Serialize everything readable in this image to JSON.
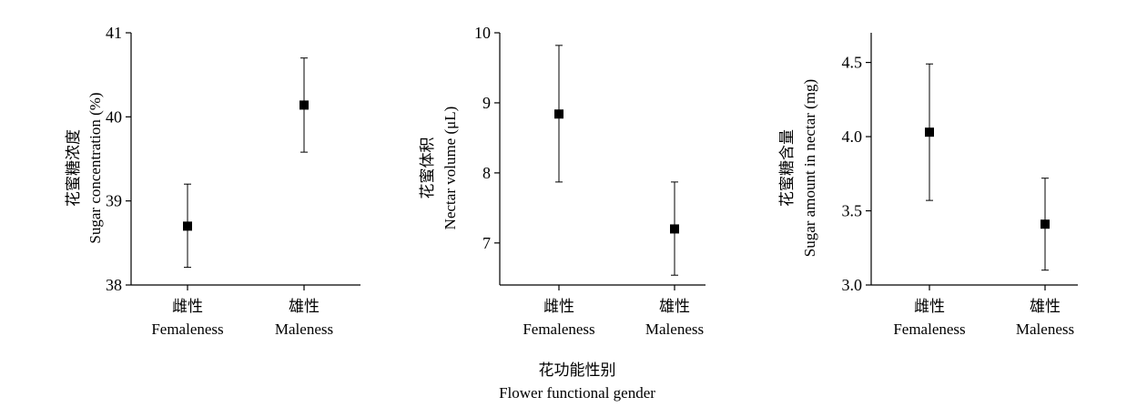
{
  "chart_data": [
    {
      "type": "scatter",
      "categories": [
        {
          "zh": "雌性",
          "en": "Femaleness"
        },
        {
          "zh": "雄性",
          "en": "Maleness"
        }
      ],
      "values": [
        38.7,
        40.14
      ],
      "error_low": [
        38.21,
        39.58
      ],
      "error_high": [
        39.2,
        40.7
      ],
      "ylabel_zh": "花蜜糖浓度",
      "ylabel_en": "Sugar concentration (%)",
      "ylim": [
        38,
        41
      ],
      "yticks": [
        38,
        39,
        40,
        41
      ],
      "ytick_labels": [
        "38",
        "39",
        "40",
        "41"
      ],
      "grid": false
    },
    {
      "type": "scatter",
      "categories": [
        {
          "zh": "雌性",
          "en": "Femaleness"
        },
        {
          "zh": "雄性",
          "en": "Maleness"
        }
      ],
      "values": [
        8.84,
        7.2
      ],
      "error_low": [
        7.87,
        6.54
      ],
      "error_high": [
        9.82,
        7.87
      ],
      "ylabel_zh": "花蜜体积",
      "ylabel_en": "Nectar volume (μL)",
      "ylim": [
        6.4,
        10
      ],
      "yticks": [
        7,
        8,
        9,
        10
      ],
      "ytick_labels": [
        "7",
        "8",
        "9",
        "10"
      ],
      "grid": false
    },
    {
      "type": "scatter",
      "categories": [
        {
          "zh": "雌性",
          "en": "Femaleness"
        },
        {
          "zh": "雄性",
          "en": "Maleness"
        }
      ],
      "values": [
        4.03,
        3.41
      ],
      "error_low": [
        3.57,
        3.1
      ],
      "error_high": [
        4.49,
        3.72
      ],
      "ylabel_zh": "花蜜糖含量",
      "ylabel_en": "Sugar amount in nectar (mg)",
      "ylim": [
        3.0,
        4.7
      ],
      "yticks": [
        3.0,
        3.5,
        4.0,
        4.5
      ],
      "ytick_labels": [
        "3.0",
        "3.5",
        "4.0",
        "4.5"
      ],
      "grid": false
    }
  ],
  "xlabel_zh": "花功能性别",
  "xlabel_en": "Flower functional gender"
}
